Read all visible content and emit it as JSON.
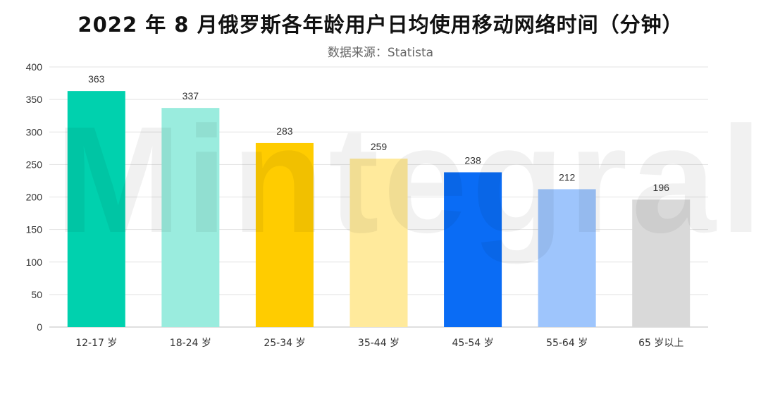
{
  "header": {
    "title": "2022 年 8 月俄罗斯各年龄用户日均使用移动网络时间（分钟）",
    "subtitle": "数据来源：Statista"
  },
  "watermark": "Mintegral",
  "chart_data": {
    "type": "bar",
    "title": "2022 年 8 月俄罗斯各年龄用户日均使用移动网络时间（分钟）",
    "subtitle": "数据来源：Statista",
    "xlabel": "",
    "ylabel": "",
    "categories": [
      "12-17 岁",
      "18-24 岁",
      "25-34 岁",
      "35-44 岁",
      "45-54 岁",
      "55-64 岁",
      "65 岁以上"
    ],
    "values": [
      363,
      337,
      283,
      259,
      238,
      212,
      196
    ],
    "colors": [
      "#00D1AE",
      "#9AECDE",
      "#FFCC00",
      "#FFEA9C",
      "#0A6CF5",
      "#9EC5FC",
      "#D9D9D9"
    ],
    "ylim": [
      0,
      400
    ],
    "yticks": [
      0,
      50,
      100,
      150,
      200,
      250,
      300,
      350,
      400
    ],
    "grid": true,
    "legend": "none",
    "data_labels": true
  }
}
